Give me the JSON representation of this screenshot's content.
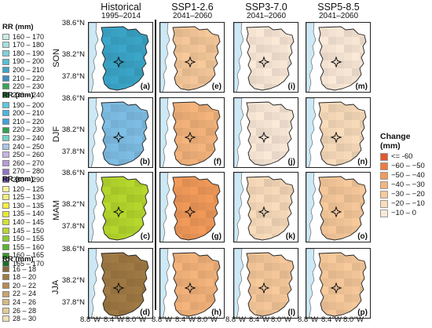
{
  "columns": [
    {
      "title": "Historical",
      "period": "1995–2014"
    },
    {
      "title": "SSP1-2.6",
      "period": "2041–2060"
    },
    {
      "title": "SSP3-7.0",
      "period": "2041–2060"
    },
    {
      "title": "SSP5-8.5",
      "period": "2041–2060"
    }
  ],
  "rows": [
    "SON",
    "DJF",
    "MAM",
    "JJA"
  ],
  "panel_labels": [
    [
      "(a)",
      "(e)",
      "(i)",
      "(m)"
    ],
    [
      "(b)",
      "(f)",
      "(j)",
      "(n)"
    ],
    [
      "(c)",
      "(g)",
      "(k)",
      "(o)"
    ],
    [
      "(d)",
      "(h)",
      "(l)",
      "(p)"
    ]
  ],
  "y_ticks": [
    "38.6°N",
    "38.2°N",
    "37.8°N"
  ],
  "x_ticks": [
    "8.8°W",
    "8.4°W",
    "8.0°W"
  ],
  "legends": [
    {
      "title": "RR (mm)",
      "items": [
        {
          "label": "160 – 170",
          "color": "#c9ece6"
        },
        {
          "label": "170 – 180",
          "color": "#a6dfe0"
        },
        {
          "label": "180 – 190",
          "color": "#7fcfdc"
        },
        {
          "label": "190 – 200",
          "color": "#55bfd4"
        },
        {
          "label": "200 – 210",
          "color": "#3ba6c9"
        },
        {
          "label": "210 – 220",
          "color": "#3a8fc4"
        },
        {
          "label": "220 – 230",
          "color": "#3aa35a"
        },
        {
          "label": "230 – 240",
          "color": "#1f7a3a"
        }
      ]
    },
    {
      "title": "RR (mm)",
      "items": [
        {
          "label": "190 – 200",
          "color": "#5cc8de"
        },
        {
          "label": "200 – 210",
          "color": "#46b7e0"
        },
        {
          "label": "210 – 220",
          "color": "#3fa2dc"
        },
        {
          "label": "220 – 230",
          "color": "#2fa34f"
        },
        {
          "label": "230 – 240",
          "color": "#72d3c6"
        },
        {
          "label": "240 – 250",
          "color": "#a9c6ea"
        },
        {
          "label": "250 – 260",
          "color": "#c7b3e5"
        },
        {
          "label": "260 – 270",
          "color": "#b69ad9"
        },
        {
          "label": "270 – 280",
          "color": "#8f74c4"
        },
        {
          "label": "280 – 290",
          "color": "#6c4fa6"
        }
      ]
    },
    {
      "title": "RR (mm)",
      "items": [
        {
          "label": "120 – 125",
          "color": "#f6f29b"
        },
        {
          "label": "125 – 130",
          "color": "#eef07a"
        },
        {
          "label": "130 – 135",
          "color": "#f5ee3c"
        },
        {
          "label": "135 – 140",
          "color": "#e6e931"
        },
        {
          "label": "140 – 145",
          "color": "#d3e32f"
        },
        {
          "label": "145 – 150",
          "color": "#b6d82d"
        },
        {
          "label": "150 – 155",
          "color": "#8ccb2b"
        },
        {
          "label": "155 – 160",
          "color": "#5cb52a"
        },
        {
          "label": "160 – 165",
          "color": "#3a9a2c"
        },
        {
          "label": "165 – 170",
          "color": "#1e6e2a"
        }
      ]
    },
    {
      "title": "RR (mm)",
      "items": [
        {
          "label": "16 – 18",
          "color": "#8a6a3c"
        },
        {
          "label": "18 – 20",
          "color": "#a07a44"
        },
        {
          "label": "20 – 22",
          "color": "#b98c52"
        },
        {
          "label": "22 – 24",
          "color": "#c9a46a"
        },
        {
          "label": "24 – 26",
          "color": "#d7b97f"
        },
        {
          "label": "26 – 28",
          "color": "#e3cb95"
        },
        {
          "label": "28 – 30",
          "color": "#efdfb4"
        }
      ]
    }
  ],
  "change_legend": {
    "title": "Change (mm)",
    "items": [
      {
        "label": "<= -60",
        "color": "#e4572e"
      },
      {
        "label": "−60 – −50",
        "color": "#ee7a3e"
      },
      {
        "label": "−50 – −40",
        "color": "#f29a5a"
      },
      {
        "label": "−40 – −30",
        "color": "#f5b47c"
      },
      {
        "label": "−30 – −20",
        "color": "#f7c99b"
      },
      {
        "label": "−20 – −10",
        "color": "#f9dcbb"
      },
      {
        "label": "−10 – 0",
        "color": "#fbe9d8"
      }
    ]
  },
  "panel_fill": {
    "historical": [
      "#3ba6c9",
      "#7fbfe6",
      "#b6d82d",
      "#a07a44"
    ],
    "scenarios": [
      [
        "#f7c99b",
        "#f5b47c",
        "#f29a5a",
        "#f5b47c"
      ],
      [
        "#fbe9d8",
        "#fbe9d8",
        "#f9dcbb",
        "#f7c99b"
      ],
      [
        "#fbe9d8",
        "#f9dcbb",
        "#f7c99b",
        "#f7c99b"
      ],
      [
        "#fbe9d8",
        "#fbe9d8",
        "#fbe9d8",
        "#fbe9d8"
      ]
    ],
    "sea": "#cce9f5"
  }
}
